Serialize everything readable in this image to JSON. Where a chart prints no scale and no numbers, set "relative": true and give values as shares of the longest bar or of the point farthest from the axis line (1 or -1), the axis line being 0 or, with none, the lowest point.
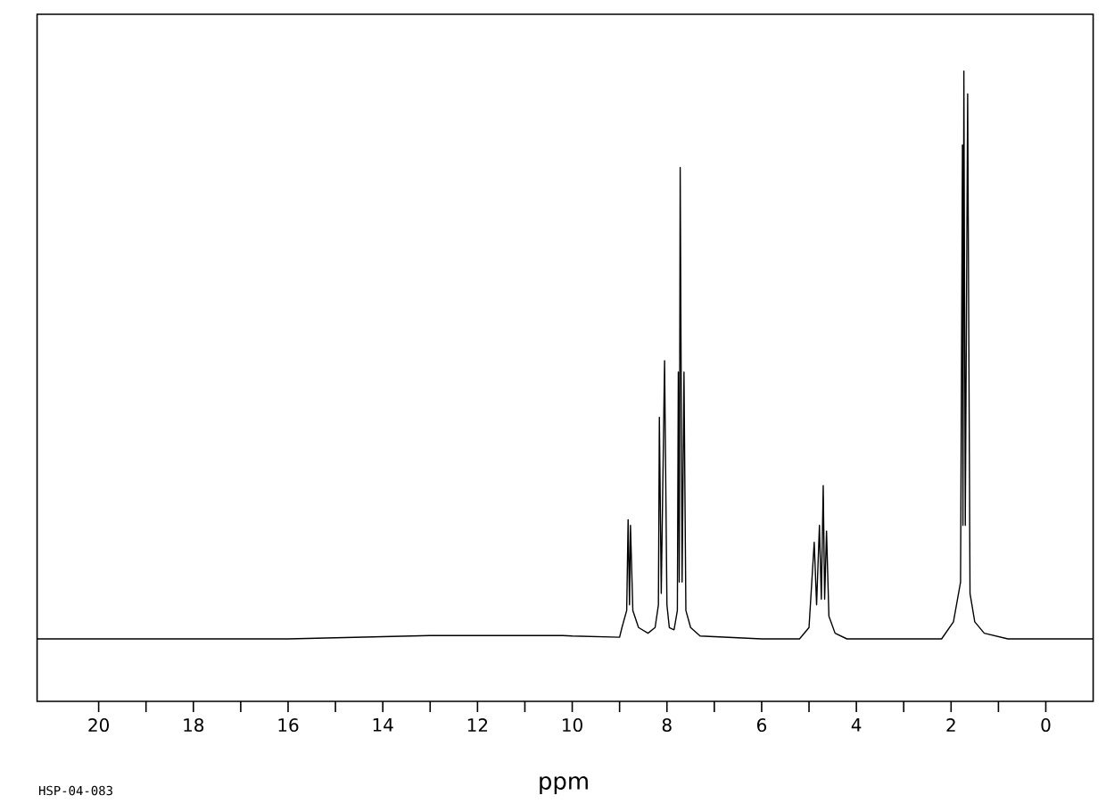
{
  "chart_data": {
    "type": "line",
    "relative": true,
    "xlabel": "ppm",
    "annotations": [
      "HSP-04-083"
    ],
    "xlim": [
      21.3,
      -1.0
    ],
    "xticks": [
      20,
      18,
      16,
      14,
      12,
      10,
      8,
      6,
      4,
      2,
      0
    ],
    "series": [
      {
        "color": "#000000",
        "x": [
          21.3,
          16,
          13,
          10.2,
          10.0,
          9.0,
          8.95,
          8.85,
          8.82,
          8.79,
          8.77,
          8.72,
          8.6,
          8.4,
          8.25,
          8.18,
          8.16,
          8.12,
          8.05,
          8.0,
          7.95,
          7.85,
          7.78,
          7.76,
          7.74,
          7.72,
          7.68,
          7.64,
          7.6,
          7.5,
          7.3,
          6,
          5.2,
          5.0,
          4.89,
          4.84,
          4.78,
          4.74,
          4.7,
          4.67,
          4.63,
          4.58,
          4.45,
          4.2,
          2.2,
          1.95,
          1.8,
          1.76,
          1.75,
          1.73,
          1.7,
          1.65,
          1.6,
          1.5,
          1.3,
          0.8,
          -1.0
        ],
        "values": [
          0,
          0,
          0.006,
          0.006,
          0.005,
          0.003,
          0.02,
          0.05,
          0.21,
          0.06,
          0.2,
          0.05,
          0.02,
          0.01,
          0.02,
          0.06,
          0.39,
          0.08,
          0.49,
          0.06,
          0.02,
          0.016,
          0.05,
          0.47,
          0.1,
          0.83,
          0.1,
          0.47,
          0.05,
          0.02,
          0.005,
          0,
          0,
          0.02,
          0.17,
          0.06,
          0.2,
          0.07,
          0.27,
          0.07,
          0.19,
          0.04,
          0.01,
          0,
          0,
          0.03,
          0.1,
          0.87,
          0.2,
          1.0,
          0.2,
          0.96,
          0.08,
          0.03,
          0.01,
          0,
          0
        ]
      }
    ]
  }
}
